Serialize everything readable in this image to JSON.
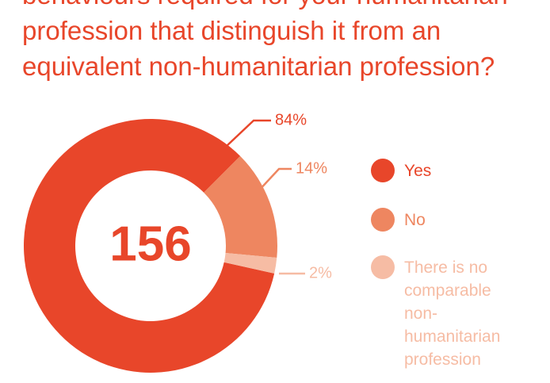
{
  "chart_data": {
    "type": "pie",
    "title": [
      "behaviours required for your humanitarian",
      "profession that distinguish it from an",
      "equivalent non-humanitarian profession?"
    ],
    "total": 156,
    "categories": [
      "Yes",
      "No",
      "There is no comparable non-humanitarian profession"
    ],
    "values": [
      84,
      14,
      2
    ],
    "value_labels": [
      "84%",
      "14%",
      "2%"
    ],
    "colors": [
      "#e8462a",
      "#ee8660",
      "#f6bca4"
    ],
    "donut": true
  }
}
